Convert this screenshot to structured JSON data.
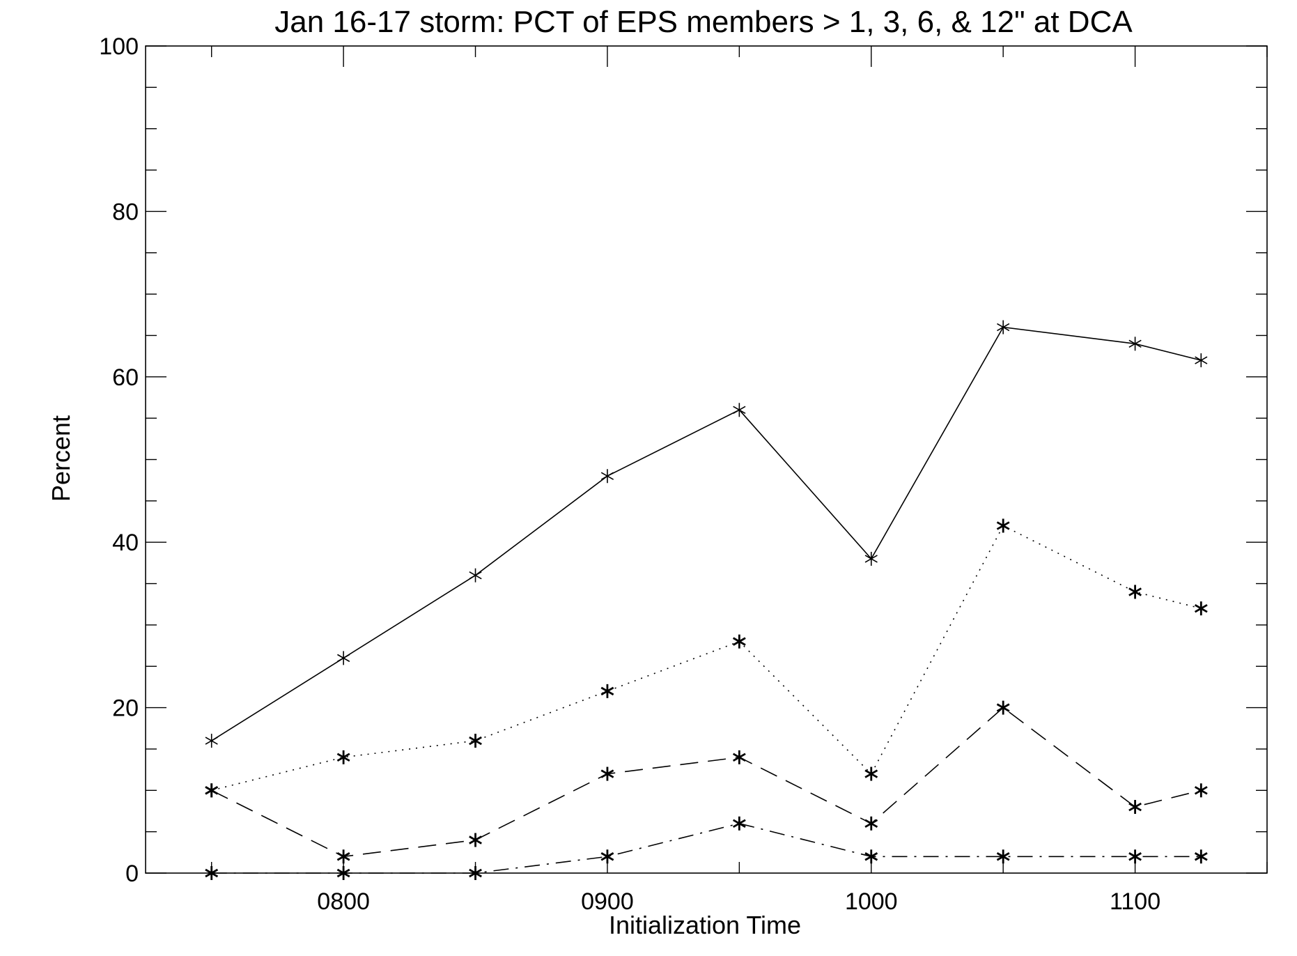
{
  "chart_data": {
    "type": "line",
    "title": "Jan 16-17 storm: PCT of EPS members > 1, 3, 6, & 12\" at DCA",
    "xlabel": "Initialization Time",
    "ylabel": "Percent",
    "xlim": [
      725,
      1150
    ],
    "ylim": [
      0,
      100
    ],
    "x_ticks": [
      800,
      900,
      1000,
      1100
    ],
    "x_tick_labels": [
      "0800",
      "0900",
      "1000",
      "1100"
    ],
    "y_ticks": [
      0,
      20,
      40,
      60,
      80,
      100
    ],
    "y_tick_labels": [
      "0",
      "20",
      "40",
      "60",
      "80",
      "100"
    ],
    "y_minor_step": 5,
    "x_minor_step": 50,
    "grid": false,
    "x": [
      750,
      800,
      850,
      900,
      950,
      1000,
      1050,
      1100,
      1125
    ],
    "series": [
      {
        "style": "solid",
        "values": [
          16,
          26,
          36,
          48,
          56,
          38,
          66,
          64,
          62
        ]
      },
      {
        "style": "dotted",
        "values": [
          10,
          14,
          16,
          22,
          28,
          12,
          42,
          34,
          32
        ]
      },
      {
        "style": "dashed",
        "values": [
          10,
          2,
          4,
          12,
          14,
          6,
          20,
          8,
          10
        ]
      },
      {
        "style": "dash-dot",
        "values": [
          0,
          0,
          0,
          2,
          6,
          2,
          2,
          2,
          2
        ]
      }
    ],
    "marker": "asterisk",
    "line_color": "#000000"
  }
}
